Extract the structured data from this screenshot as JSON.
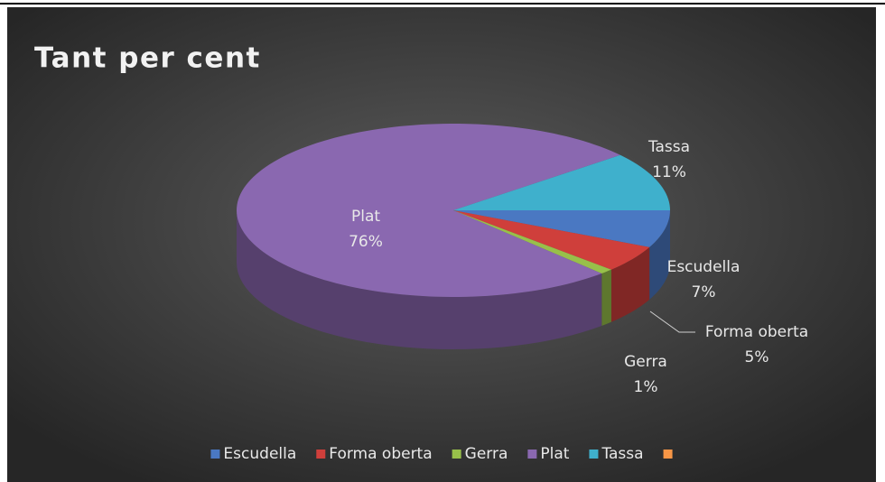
{
  "chart_data": {
    "type": "pie",
    "title": "Tant per cent",
    "categories": [
      "Escudella",
      "Forma oberta",
      "Gerra",
      "Plat",
      "Tassa",
      null
    ],
    "values": [
      7,
      5,
      1,
      76,
      11,
      0
    ],
    "value_labels": [
      "7%",
      "5%",
      "1%",
      "76%",
      "11%",
      null
    ],
    "colors": [
      "#4a78c2",
      "#cf3f3b",
      "#98c04a",
      "#8a68b0",
      "#3fb0cc",
      "#f79646"
    ],
    "three_d": true,
    "legend": "bottom"
  }
}
